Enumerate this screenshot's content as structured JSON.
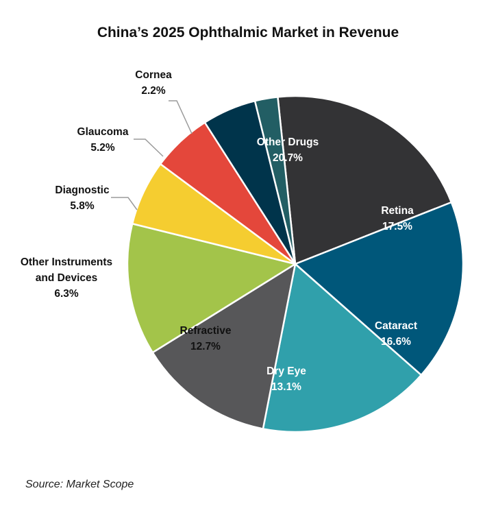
{
  "chart_data": {
    "type": "pie",
    "title": "China’s 2025 Ophthalmic Market in Revenue",
    "source": "Source: Market Scope",
    "slices": [
      {
        "label": "Other Drugs",
        "label_lines": [
          "Other Drugs"
        ],
        "value": 20.7,
        "pct": "20.7%",
        "color": "#333335",
        "text_color": "#ffffff"
      },
      {
        "label": "Retina",
        "label_lines": [
          "Retina"
        ],
        "value": 17.5,
        "pct": "17.5%",
        "color": "#00577a",
        "text_color": "#ffffff"
      },
      {
        "label": "Cataract",
        "label_lines": [
          "Cataract"
        ],
        "value": 16.6,
        "pct": "16.6%",
        "color": "#30a0ab",
        "text_color": "#ffffff"
      },
      {
        "label": "Dry Eye",
        "label_lines": [
          "Dry Eye"
        ],
        "value": 13.1,
        "pct": "13.1%",
        "color": "#575759",
        "text_color": "#ffffff"
      },
      {
        "label": "Refractive",
        "label_lines": [
          "Refractive"
        ],
        "value": 12.7,
        "pct": "12.7%",
        "color": "#a3c44a",
        "text_color": "#111111"
      },
      {
        "label": "Other Instruments and Devices",
        "label_lines": [
          "Other Instruments",
          "and Devices"
        ],
        "value": 6.3,
        "pct": "6.3%",
        "color": "#f5cd30",
        "text_color": "#111111"
      },
      {
        "label": "Diagnostic",
        "label_lines": [
          "Diagnostic"
        ],
        "value": 5.8,
        "pct": "5.8%",
        "color": "#e4473b",
        "text_color": "#111111"
      },
      {
        "label": "Glaucoma",
        "label_lines": [
          "Glaucoma"
        ],
        "value": 5.2,
        "pct": "5.2%",
        "color": "#00344b",
        "text_color": "#111111"
      },
      {
        "label": "Cornea",
        "label_lines": [
          "Cornea"
        ],
        "value": 2.2,
        "pct": "2.2%",
        "color": "#225e64",
        "text_color": "#111111"
      }
    ],
    "start_angle_deg": -6,
    "direction": "clockwise",
    "legend": "none"
  }
}
